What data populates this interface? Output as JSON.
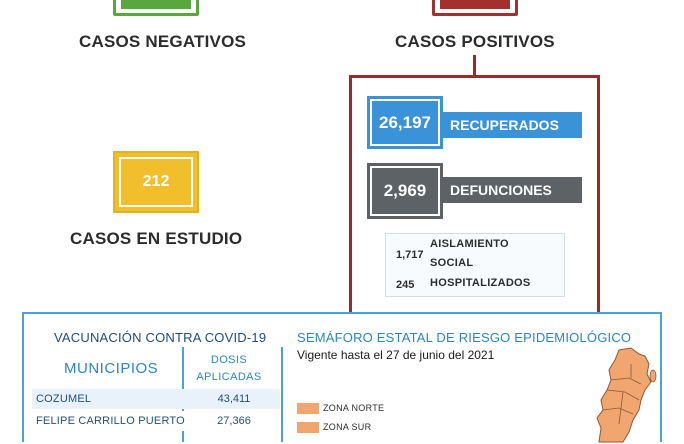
{
  "negativos": {
    "label": "CASOS NEGATIVOS",
    "color": "#5aa83d"
  },
  "positivos": {
    "label": "CASOS POSITIVOS",
    "color": "#a32f2f"
  },
  "estudio": {
    "value": "212",
    "label": "CASOS EN ESTUDIO",
    "color": "#f1bf2b"
  },
  "recuperados": {
    "value": "26,197",
    "label": "RECUPERADOS",
    "color": "#3a92d9"
  },
  "defunciones": {
    "value": "2,969",
    "label": "DEFUNCIONES",
    "color": "#5d6267"
  },
  "aislamiento": {
    "value": "1,717",
    "label_line1": "AISLAMIENTO",
    "label_line2": "SOCIAL"
  },
  "hospitalizados": {
    "value": "245",
    "label": "HOSPITALIZADOS"
  },
  "vacunacion": {
    "title": "VACUNACIÓN CONTRA COVID-19",
    "col_municipios": "MUNICIPIOS",
    "col_dosis_line1": "DOSIS",
    "col_dosis_line2": "APLICADAS",
    "rows": [
      {
        "municipio": "COZUMEL",
        "dosis": "43,411"
      },
      {
        "municipio": "FELIPE CARRILLO PUERTO",
        "dosis": "27,366"
      }
    ]
  },
  "semaforo": {
    "title": "SEMÁFORO ESTATAL DE RIESGO EPIDEMIOLÓGICO",
    "subtitle": "Vigente hasta el 27 de junio del 2021",
    "zones": [
      {
        "label": "ZONA NORTE",
        "color": "#f0a66e"
      },
      {
        "label": "ZONA SUR",
        "color": "#f0a66e"
      }
    ]
  }
}
